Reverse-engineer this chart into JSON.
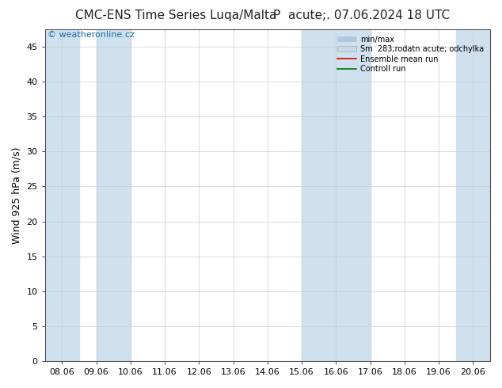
{
  "title_left": "CMC-ENS Time Series Luqa/Malta",
  "title_right": "P  acute;. 07.06.2024 18 UTC",
  "ylabel": "Wind 925 hPa (m/s)",
  "watermark": "© weatheronline.cz",
  "ylim": [
    0,
    47.5
  ],
  "yticks": [
    0,
    5,
    10,
    15,
    20,
    25,
    30,
    35,
    40,
    45
  ],
  "x_labels": [
    "08.06",
    "09.06",
    "10.06",
    "11.06",
    "12.06",
    "13.06",
    "14.06",
    "15.06",
    "16.06",
    "17.06",
    "18.06",
    "19.06",
    "20.06"
  ],
  "x_positions": [
    0,
    1,
    2,
    3,
    4,
    5,
    6,
    7,
    8,
    9,
    10,
    11,
    12
  ],
  "xlim": [
    -0.5,
    12.5
  ],
  "shade_bands": [
    [
      -0.5,
      0.5
    ],
    [
      1.0,
      2.0
    ],
    [
      7.0,
      9.0
    ],
    [
      11.5,
      12.5
    ]
  ],
  "shade_color": "#cfe0ef",
  "bg_color": "#ffffff",
  "ensemble_mean_color": "#dd0000",
  "control_run_color": "#007700",
  "minmax_color": "#b0c8dc",
  "spread_color": "#c8d8e8",
  "title_fontsize": 11,
  "tick_fontsize": 8,
  "ylabel_fontsize": 9,
  "watermark_color": "#1a6fa0",
  "watermark_fontsize": 8
}
